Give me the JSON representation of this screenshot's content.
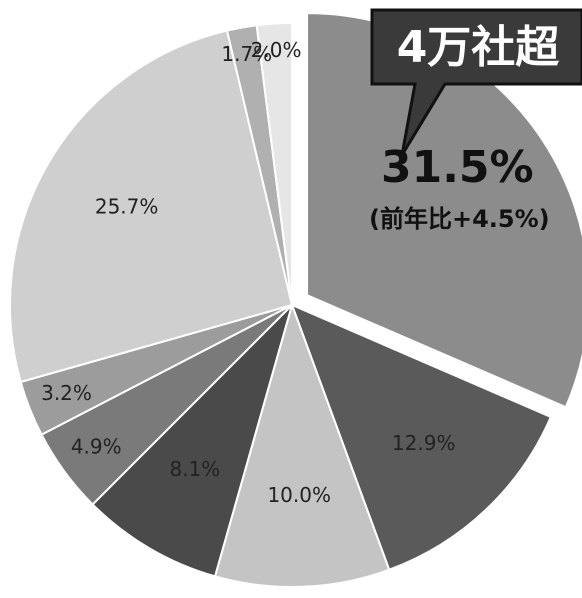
{
  "chart_data": {
    "type": "pie",
    "values": [
      31.5,
      12.9,
      10.0,
      8.1,
      4.9,
      3.2,
      25.7,
      1.7,
      2.0
    ],
    "value_labels": [
      "31.5%",
      "12.9%",
      "10.0%",
      "8.1%",
      "4.9%",
      "3.2%",
      "25.7%",
      "1.7%",
      "2.0%"
    ],
    "colors": [
      "#8c8c8c",
      "#5a5a5a",
      "#c4c4c4",
      "#4a4a4a",
      "#7a7a7a",
      "#9c9c9c",
      "#cfcfcf",
      "#b0b0b0",
      "#e6e6e6"
    ],
    "exploded": 0,
    "callout": "4万社超",
    "annotation": "(前年比+4.5%)"
  }
}
